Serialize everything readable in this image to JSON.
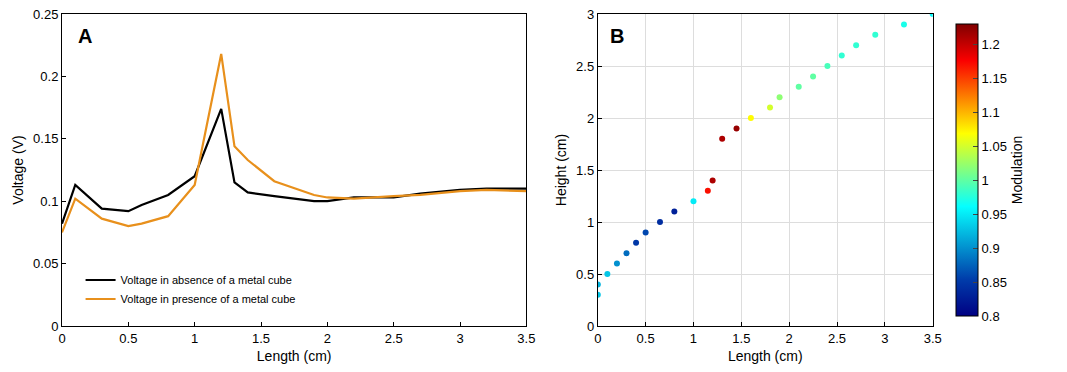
{
  "chart_data": [
    {
      "type": "line",
      "panel": "A",
      "x_label": "Length (cm)",
      "y_label": "Voltage (V)",
      "x": [
        0,
        0.1,
        0.3,
        0.5,
        0.6,
        0.8,
        1.0,
        1.2,
        1.3,
        1.4,
        1.6,
        1.9,
        2.0,
        2.2,
        2.5,
        2.7,
        3.0,
        3.2,
        3.5
      ],
      "series": [
        {
          "name": "Voltage in absence of a metal cube",
          "color": "#000000",
          "values": [
            0.082,
            0.113,
            0.094,
            0.092,
            0.097,
            0.105,
            0.12,
            0.174,
            0.115,
            0.107,
            0.104,
            0.1,
            0.1,
            0.103,
            0.103,
            0.106,
            0.109,
            0.11,
            0.11
          ]
        },
        {
          "name": "Voltage in presence of a metal cube",
          "color": "#e8901c",
          "values": [
            0.075,
            0.102,
            0.086,
            0.08,
            0.082,
            0.088,
            0.113,
            0.218,
            0.144,
            0.133,
            0.116,
            0.105,
            0.103,
            0.102,
            0.104,
            0.105,
            0.108,
            0.109,
            0.108
          ]
        }
      ],
      "xlim": [
        0,
        3.5
      ],
      "xticks": [
        0,
        0.5,
        1,
        1.5,
        2,
        2.5,
        3,
        3.5
      ],
      "ylim": [
        0,
        0.25
      ],
      "yticks": [
        0,
        0.05,
        0.1,
        0.15,
        0.2,
        0.25
      ],
      "grid": false,
      "legend": "bottom left"
    },
    {
      "type": "scatter",
      "panel": "B",
      "x_label": "Length (cm)",
      "y_label": "Height (cm)",
      "x": [
        0,
        0,
        0.1,
        0.2,
        0.3,
        0.4,
        0.5,
        0.65,
        0.8,
        1.0,
        1.15,
        1.2,
        1.3,
        1.45,
        1.6,
        1.8,
        1.9,
        2.1,
        2.25,
        2.4,
        2.55,
        2.7,
        2.9,
        3.2,
        3.5
      ],
      "y": [
        0.3,
        0.4,
        0.5,
        0.6,
        0.7,
        0.8,
        0.9,
        1.0,
        1.1,
        1.2,
        1.3,
        1.4,
        1.8,
        1.9,
        2.0,
        2.1,
        2.2,
        2.3,
        2.4,
        2.5,
        2.6,
        2.7,
        2.8,
        2.9,
        3.0
      ],
      "modulation": [
        0.93,
        0.92,
        0.93,
        0.9,
        0.88,
        0.85,
        0.86,
        0.84,
        0.83,
        0.95,
        1.17,
        1.21,
        1.21,
        1.22,
        1.07,
        1.05,
        1.02,
        1.0,
        1.0,
        0.99,
        0.98,
        0.98,
        0.98,
        0.97,
        0.96
      ],
      "colorbar": {
        "title": "Modulation",
        "range": [
          0.8,
          1.23
        ],
        "ticks": [
          0.8,
          0.85,
          0.9,
          0.95,
          1,
          1.05,
          1.1,
          1.15,
          1.2
        ]
      },
      "xlim": [
        0,
        3.5
      ],
      "xticks": [
        0,
        0.5,
        1,
        1.5,
        2,
        2.5,
        3,
        3.5
      ],
      "ylim": [
        0,
        3
      ],
      "yticks": [
        0,
        0.5,
        1,
        1.5,
        2,
        2.5,
        3
      ],
      "grid": true,
      "marker": "circle"
    }
  ]
}
